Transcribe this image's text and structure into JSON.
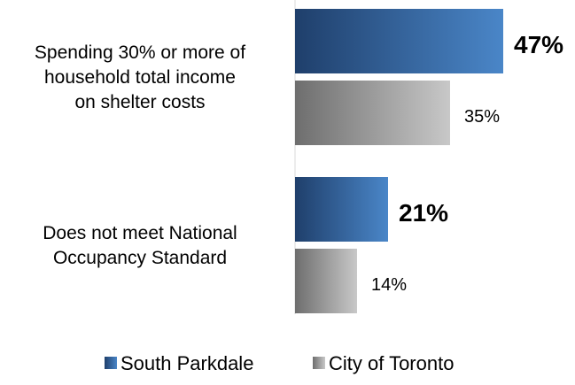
{
  "chart_data": {
    "type": "bar",
    "orientation": "horizontal",
    "categories": [
      [
        "Spending 30% or more of",
        "household total income",
        "on shelter costs"
      ],
      [
        "Does not meet National",
        "Occupancy Standard"
      ]
    ],
    "series": [
      {
        "name": "South Parkdale",
        "values": [
          47,
          21
        ],
        "labels": [
          "47%",
          "21%"
        ],
        "color_start": "#1f3f6b",
        "color_end": "#4a86c8",
        "label_style": "bold"
      },
      {
        "name": "City of Toronto",
        "values": [
          35,
          14
        ],
        "labels": [
          "35%",
          "14%"
        ],
        "color_start": "#6e6e6e",
        "color_end": "#c8c8c8",
        "label_style": "normal"
      }
    ],
    "xlim": [
      0,
      50
    ],
    "grid": false,
    "legend_position": "bottom"
  }
}
